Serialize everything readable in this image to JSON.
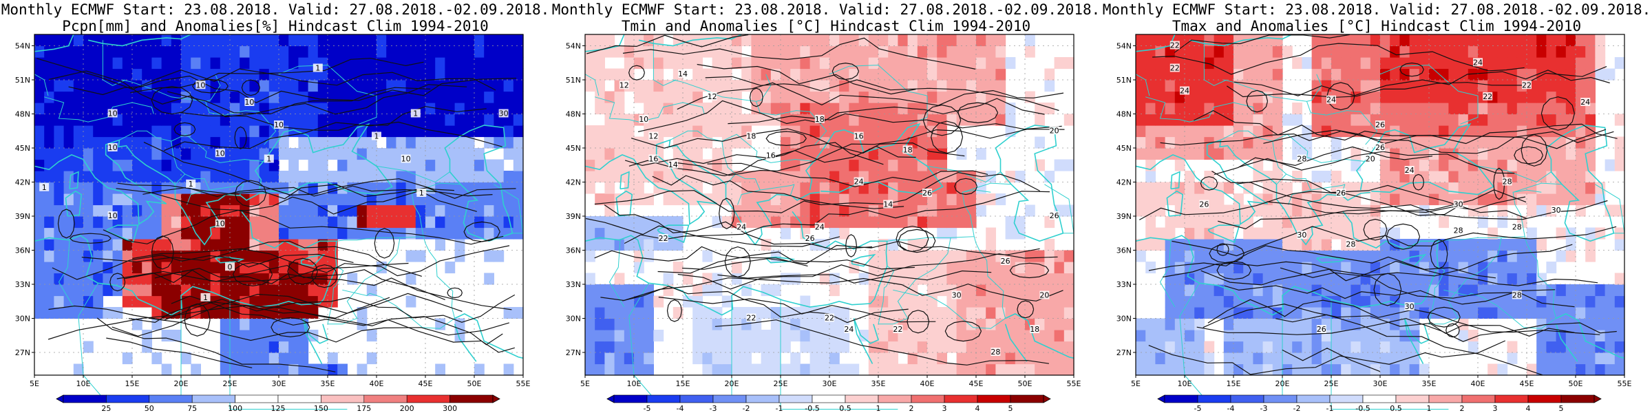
{
  "panels": [
    {
      "title_line1": "Monthly ECMWF Start: 23.08.2018. Valid: 27.08.2018.-02.09.2018.",
      "title_line2": "Pcpn[mm] and Anomalies[%] Hindcast Clim 1994-2010",
      "colorbar": {
        "labels": [
          "25",
          "50",
          "75",
          "100",
          "125",
          "150",
          "175",
          "200",
          "300"
        ],
        "colors": [
          "#0000c8",
          "#1a3cf0",
          "#5a80f5",
          "#a8c0fa",
          "#ffffff",
          "#ffffff",
          "#fac0c0",
          "#f08080",
          "#e83030",
          "#8b0000"
        ]
      },
      "contour_labels": [
        "10",
        "10",
        "10",
        "10",
        "10",
        "10",
        "10",
        "1",
        "1",
        "1",
        "1",
        "1",
        "1",
        "30",
        "10",
        "10",
        "0",
        "1",
        "1"
      ]
    },
    {
      "title_line1": "Monthly ECMWF Start: 23.08.2018. Valid: 27.08.2018.-02.09.2018.",
      "title_line2": "Tmin and Anomalies [°C] Hindcast Clim 1994-2010",
      "colorbar": {
        "labels": [
          "-5",
          "-4",
          "-3",
          "-2",
          "-1",
          "-0.5",
          "0.5",
          "1",
          "2",
          "3",
          "4",
          "5"
        ],
        "colors": [
          "#0000c8",
          "#1a3cf0",
          "#4060f0",
          "#7090f5",
          "#a8c0fa",
          "#d0dcfc",
          "#ffffff",
          "#fcd0d0",
          "#f8a8a8",
          "#f07070",
          "#e83030",
          "#c80000",
          "#8b0000"
        ]
      },
      "contour_labels": [
        "12",
        "12",
        "14",
        "10",
        "12",
        "16",
        "14",
        "16",
        "18",
        "18",
        "16",
        "20",
        "18",
        "24",
        "26",
        "22",
        "24",
        "24",
        "22",
        "26",
        "26",
        "22",
        "24",
        "22",
        "26",
        "30",
        "28",
        "18",
        "14",
        "20"
      ]
    },
    {
      "title_line1": "Monthly ECMWF Start: 23.08.2018. Valid: 27.08.2018.-02.09.2018.",
      "title_line2": "Tmax and Anomalies [°C] Hindcast Clim 1994-2010",
      "colorbar": {
        "labels": [
          "-5",
          "-4",
          "-3",
          "-2",
          "-1",
          "-0.5",
          "0.5",
          "1",
          "2",
          "3",
          "4",
          "5"
        ],
        "colors": [
          "#0000c8",
          "#1a3cf0",
          "#4060f0",
          "#7090f5",
          "#a8c0fa",
          "#d0dcfc",
          "#ffffff",
          "#fcd0d0",
          "#f8a8a8",
          "#f07070",
          "#e83030",
          "#c80000",
          "#8b0000"
        ]
      },
      "contour_labels": [
        "22",
        "22",
        "24",
        "24",
        "24",
        "26",
        "22",
        "28",
        "26",
        "24",
        "22",
        "28",
        "26",
        "30",
        "28",
        "26",
        "30",
        "28",
        "30",
        "28",
        "26",
        "30",
        "28",
        "24",
        "20"
      ]
    }
  ],
  "map": {
    "lat_ticks": [
      "54N",
      "51N",
      "48N",
      "45N",
      "42N",
      "39N",
      "36N",
      "33N",
      "30N",
      "27N"
    ],
    "lon_ticks": [
      "5E",
      "10E",
      "15E",
      "20E",
      "25E",
      "30E",
      "35E",
      "40E",
      "45E",
      "50E",
      "55E"
    ]
  }
}
